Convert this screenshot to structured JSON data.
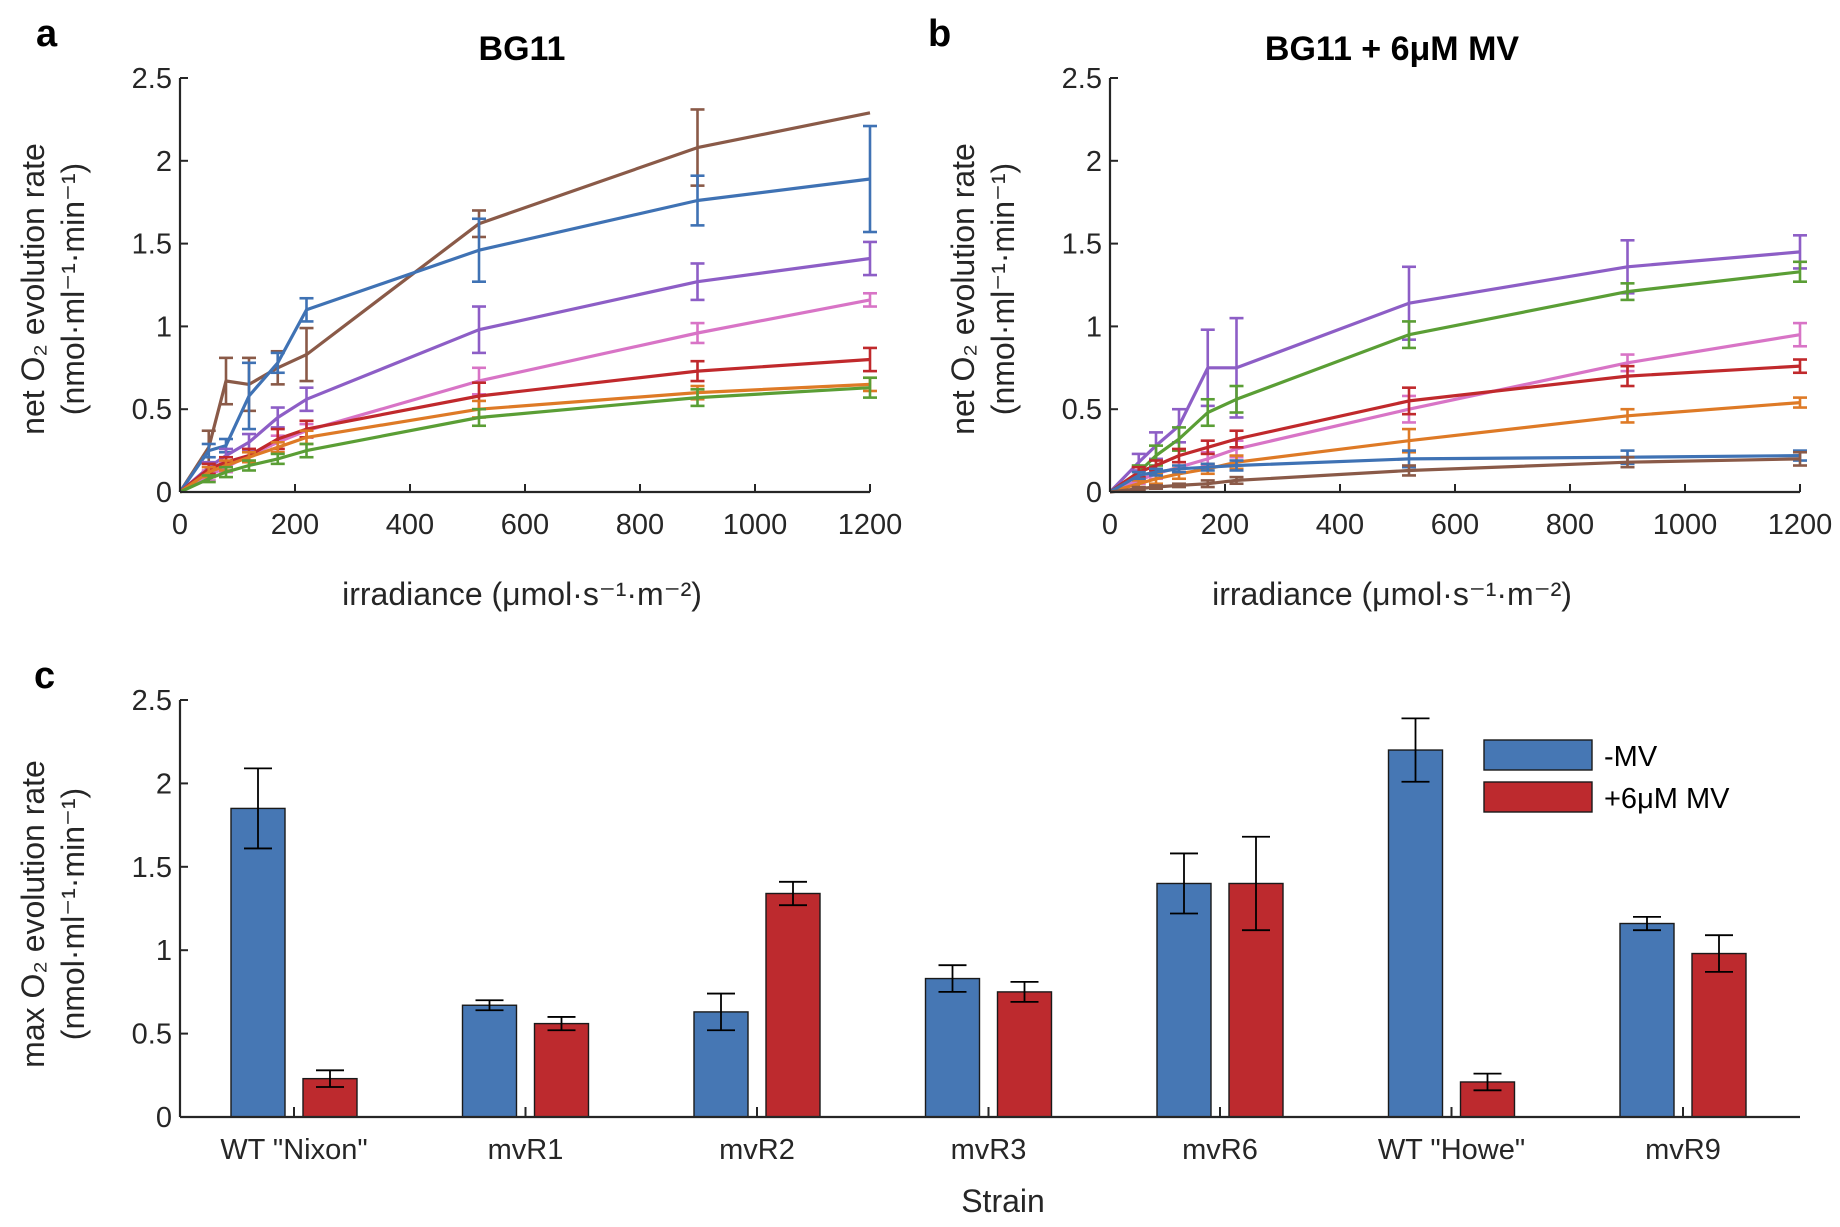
{
  "figure": {
    "panels": [
      {
        "letter": "a",
        "title": "BG11"
      },
      {
        "letter": "b",
        "title": "BG11 + 6μM MV"
      },
      {
        "letter": "c",
        "title": ""
      }
    ]
  },
  "colors": {
    "blue": "#3f72b4",
    "orange": "#de7a26",
    "green": "#5a9e35",
    "red": "#c0292c",
    "purple": "#8d5ec6",
    "brown": "#8a5a48",
    "pink": "#d874c6",
    "bar_minus": "#4677b4",
    "bar_plus": "#bd2a2e"
  },
  "chart_data": [
    {
      "type": "line",
      "panel": "a",
      "title": "BG11",
      "xlabel": "irradiance (μmol·s⁻¹·m⁻²)",
      "ylabel_line1": "net O₂ evolution rate",
      "ylabel_line2": "(nmol·ml⁻¹·min⁻¹)",
      "xlim": [
        0,
        1200
      ],
      "ylim": [
        0,
        2.5
      ],
      "xticks": [
        0,
        200,
        400,
        600,
        800,
        1000,
        1200
      ],
      "yticks": [
        0,
        0.5,
        1,
        1.5,
        2,
        2.5
      ],
      "ytick_labels": [
        "0",
        "0.5",
        "1",
        "1.5",
        "2",
        "2.5"
      ],
      "series": [
        {
          "color": "brown",
          "x": [
            0,
            50,
            80,
            120,
            170,
            220,
            520,
            900,
            1200
          ],
          "y": [
            0,
            0.27,
            0.67,
            0.65,
            0.75,
            0.83,
            1.62,
            2.08,
            2.29
          ],
          "err": [
            0,
            0.1,
            0.14,
            0.16,
            0.1,
            0.16,
            0.08,
            0.23,
            0
          ]
        },
        {
          "color": "blue",
          "x": [
            0,
            50,
            80,
            120,
            170,
            220,
            520,
            900,
            1200
          ],
          "y": [
            0,
            0.25,
            0.28,
            0.58,
            0.78,
            1.1,
            1.46,
            1.76,
            1.89
          ],
          "err": [
            0,
            0.04,
            0.04,
            0.2,
            0.06,
            0.07,
            0.19,
            0.15,
            0.32
          ]
        },
        {
          "color": "purple",
          "x": [
            0,
            50,
            80,
            120,
            170,
            220,
            520,
            900,
            1200
          ],
          "y": [
            0,
            0.15,
            0.22,
            0.3,
            0.45,
            0.56,
            0.98,
            1.27,
            1.41
          ],
          "err": [
            0,
            0.03,
            0.04,
            0.05,
            0.06,
            0.07,
            0.14,
            0.11,
            0.1
          ]
        },
        {
          "color": "pink",
          "x": [
            0,
            50,
            80,
            120,
            170,
            220,
            520,
            900,
            1200
          ],
          "y": [
            0,
            0.1,
            0.15,
            0.22,
            0.3,
            0.37,
            0.67,
            0.96,
            1.16
          ],
          "err": [
            0,
            0.03,
            0.03,
            0.04,
            0.04,
            0.04,
            0.08,
            0.06,
            0.04
          ]
        },
        {
          "color": "red",
          "x": [
            0,
            50,
            80,
            120,
            170,
            220,
            520,
            900,
            1200
          ],
          "y": [
            0,
            0.14,
            0.18,
            0.22,
            0.32,
            0.38,
            0.58,
            0.73,
            0.8
          ],
          "err": [
            0,
            0.03,
            0.03,
            0.04,
            0.06,
            0.05,
            0.08,
            0.06,
            0.07
          ]
        },
        {
          "color": "orange",
          "x": [
            0,
            50,
            80,
            120,
            170,
            220,
            520,
            900,
            1200
          ],
          "y": [
            0,
            0.12,
            0.16,
            0.21,
            0.27,
            0.33,
            0.5,
            0.6,
            0.65
          ],
          "err": [
            0,
            0.03,
            0.03,
            0.03,
            0.03,
            0.04,
            0.05,
            0.04,
            0.04
          ]
        },
        {
          "color": "green",
          "x": [
            0,
            50,
            80,
            120,
            170,
            220,
            520,
            900,
            1200
          ],
          "y": [
            0,
            0.08,
            0.12,
            0.16,
            0.2,
            0.25,
            0.45,
            0.57,
            0.63
          ],
          "err": [
            0,
            0.02,
            0.03,
            0.03,
            0.03,
            0.04,
            0.05,
            0.05,
            0.06
          ]
        }
      ]
    },
    {
      "type": "line",
      "panel": "b",
      "title": "BG11 + 6μM MV",
      "xlabel": "irradiance (μmol·s⁻¹·m⁻²)",
      "ylabel_line1": "net O₂ evolution rate",
      "ylabel_line2": "(nmol·ml⁻¹·min⁻¹)",
      "xlim": [
        0,
        1200
      ],
      "ylim": [
        0,
        2.5
      ],
      "xticks": [
        0,
        200,
        400,
        600,
        800,
        1000,
        1200
      ],
      "yticks": [
        0,
        0.5,
        1,
        1.5,
        2,
        2.5
      ],
      "ytick_labels": [
        "0",
        "0.5",
        "1",
        "1.5",
        "2",
        "2.5"
      ],
      "series": [
        {
          "color": "purple",
          "x": [
            0,
            50,
            80,
            120,
            170,
            220,
            520,
            900,
            1200
          ],
          "y": [
            0,
            0.18,
            0.28,
            0.4,
            0.75,
            0.75,
            1.14,
            1.36,
            1.45
          ],
          "err": [
            0,
            0.05,
            0.08,
            0.1,
            0.23,
            0.3,
            0.22,
            0.16,
            0.1
          ]
        },
        {
          "color": "green",
          "x": [
            0,
            50,
            80,
            120,
            170,
            220,
            520,
            900,
            1200
          ],
          "y": [
            0,
            0.12,
            0.22,
            0.32,
            0.48,
            0.56,
            0.95,
            1.21,
            1.33
          ],
          "err": [
            0,
            0.04,
            0.06,
            0.07,
            0.08,
            0.08,
            0.08,
            0.05,
            0.06
          ]
        },
        {
          "color": "pink",
          "x": [
            0,
            50,
            80,
            120,
            170,
            220,
            520,
            900,
            1200
          ],
          "y": [
            0,
            0.07,
            0.11,
            0.15,
            0.2,
            0.26,
            0.5,
            0.78,
            0.95
          ],
          "err": [
            0,
            0.02,
            0.03,
            0.03,
            0.04,
            0.05,
            0.08,
            0.05,
            0.07
          ]
        },
        {
          "color": "red",
          "x": [
            0,
            50,
            80,
            120,
            170,
            220,
            520,
            900,
            1200
          ],
          "y": [
            0,
            0.12,
            0.16,
            0.22,
            0.27,
            0.32,
            0.55,
            0.7,
            0.76
          ],
          "err": [
            0,
            0.03,
            0.03,
            0.04,
            0.04,
            0.05,
            0.08,
            0.06,
            0.04
          ]
        },
        {
          "color": "orange",
          "x": [
            0,
            50,
            80,
            120,
            170,
            220,
            520,
            900,
            1200
          ],
          "y": [
            0,
            0.05,
            0.08,
            0.11,
            0.14,
            0.18,
            0.31,
            0.46,
            0.54
          ],
          "err": [
            0,
            0.02,
            0.03,
            0.03,
            0.03,
            0.04,
            0.07,
            0.04,
            0.03
          ]
        },
        {
          "color": "blue",
          "x": [
            0,
            50,
            80,
            120,
            170,
            220,
            520,
            900,
            1200
          ],
          "y": [
            0,
            0.1,
            0.12,
            0.14,
            0.15,
            0.16,
            0.2,
            0.21,
            0.22
          ],
          "err": [
            0,
            0.02,
            0.02,
            0.02,
            0.02,
            0.03,
            0.05,
            0.04,
            0.03
          ]
        },
        {
          "color": "brown",
          "x": [
            0,
            50,
            80,
            120,
            170,
            220,
            520,
            900,
            1200
          ],
          "y": [
            0,
            0.02,
            0.03,
            0.04,
            0.05,
            0.07,
            0.13,
            0.18,
            0.2
          ],
          "err": [
            0,
            0.01,
            0.01,
            0.01,
            0.02,
            0.02,
            0.03,
            0.03,
            0.04
          ]
        }
      ]
    },
    {
      "type": "bar",
      "panel": "c",
      "xlabel": "Strain",
      "ylabel_line1": "max O₂ evolution rate",
      "ylabel_line2": "(nmol·ml⁻¹·min⁻¹)",
      "ylim": [
        0,
        2.5
      ],
      "yticks": [
        0,
        0.5,
        1,
        1.5,
        2,
        2.5
      ],
      "ytick_labels": [
        "0",
        "0.5",
        "1",
        "1.5",
        "2",
        "2.5"
      ],
      "categories": [
        "WT \"Nixon\"",
        "mvR1",
        "mvR2",
        "mvR3",
        "mvR6",
        "WT \"Howe\"",
        "mvR9"
      ],
      "legend_position": "top-right",
      "series": [
        {
          "name": "-MV",
          "color": "bar_minus",
          "values": [
            1.85,
            0.67,
            0.63,
            0.83,
            1.4,
            2.2,
            1.16
          ],
          "err": [
            0.24,
            0.03,
            0.11,
            0.08,
            0.18,
            0.19,
            0.04
          ]
        },
        {
          "name": "+6μM MV",
          "color": "bar_plus",
          "values": [
            0.23,
            0.56,
            1.34,
            0.75,
            1.4,
            0.21,
            0.98
          ],
          "err": [
            0.05,
            0.04,
            0.07,
            0.06,
            0.28,
            0.05,
            0.11
          ]
        }
      ]
    }
  ]
}
